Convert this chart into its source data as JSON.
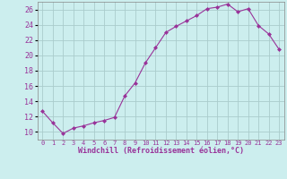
{
  "x": [
    0,
    1,
    2,
    3,
    4,
    5,
    6,
    7,
    8,
    9,
    10,
    11,
    12,
    13,
    14,
    15,
    16,
    17,
    18,
    19,
    20,
    21,
    22,
    23
  ],
  "y": [
    12.7,
    11.2,
    9.8,
    10.5,
    10.8,
    11.2,
    11.5,
    11.9,
    14.7,
    16.4,
    19.0,
    21.0,
    23.0,
    23.8,
    24.5,
    25.2,
    26.1,
    26.3,
    26.7,
    25.7,
    26.1,
    23.9,
    22.8,
    20.8
  ],
  "line_color": "#993399",
  "marker": "D",
  "marker_size": 2.0,
  "bg_color": "#cceeee",
  "grid_color": "#aacccc",
  "xlabel": "Windchill (Refroidissement éolien,°C)",
  "xlabel_color": "#993399",
  "tick_color": "#993399",
  "ylim": [
    9,
    27
  ],
  "xlim": [
    -0.5,
    23.5
  ],
  "yticks": [
    10,
    12,
    14,
    16,
    18,
    20,
    22,
    24,
    26
  ],
  "xticks": [
    0,
    1,
    2,
    3,
    4,
    5,
    6,
    7,
    8,
    9,
    10,
    11,
    12,
    13,
    14,
    15,
    16,
    17,
    18,
    19,
    20,
    21,
    22,
    23
  ]
}
